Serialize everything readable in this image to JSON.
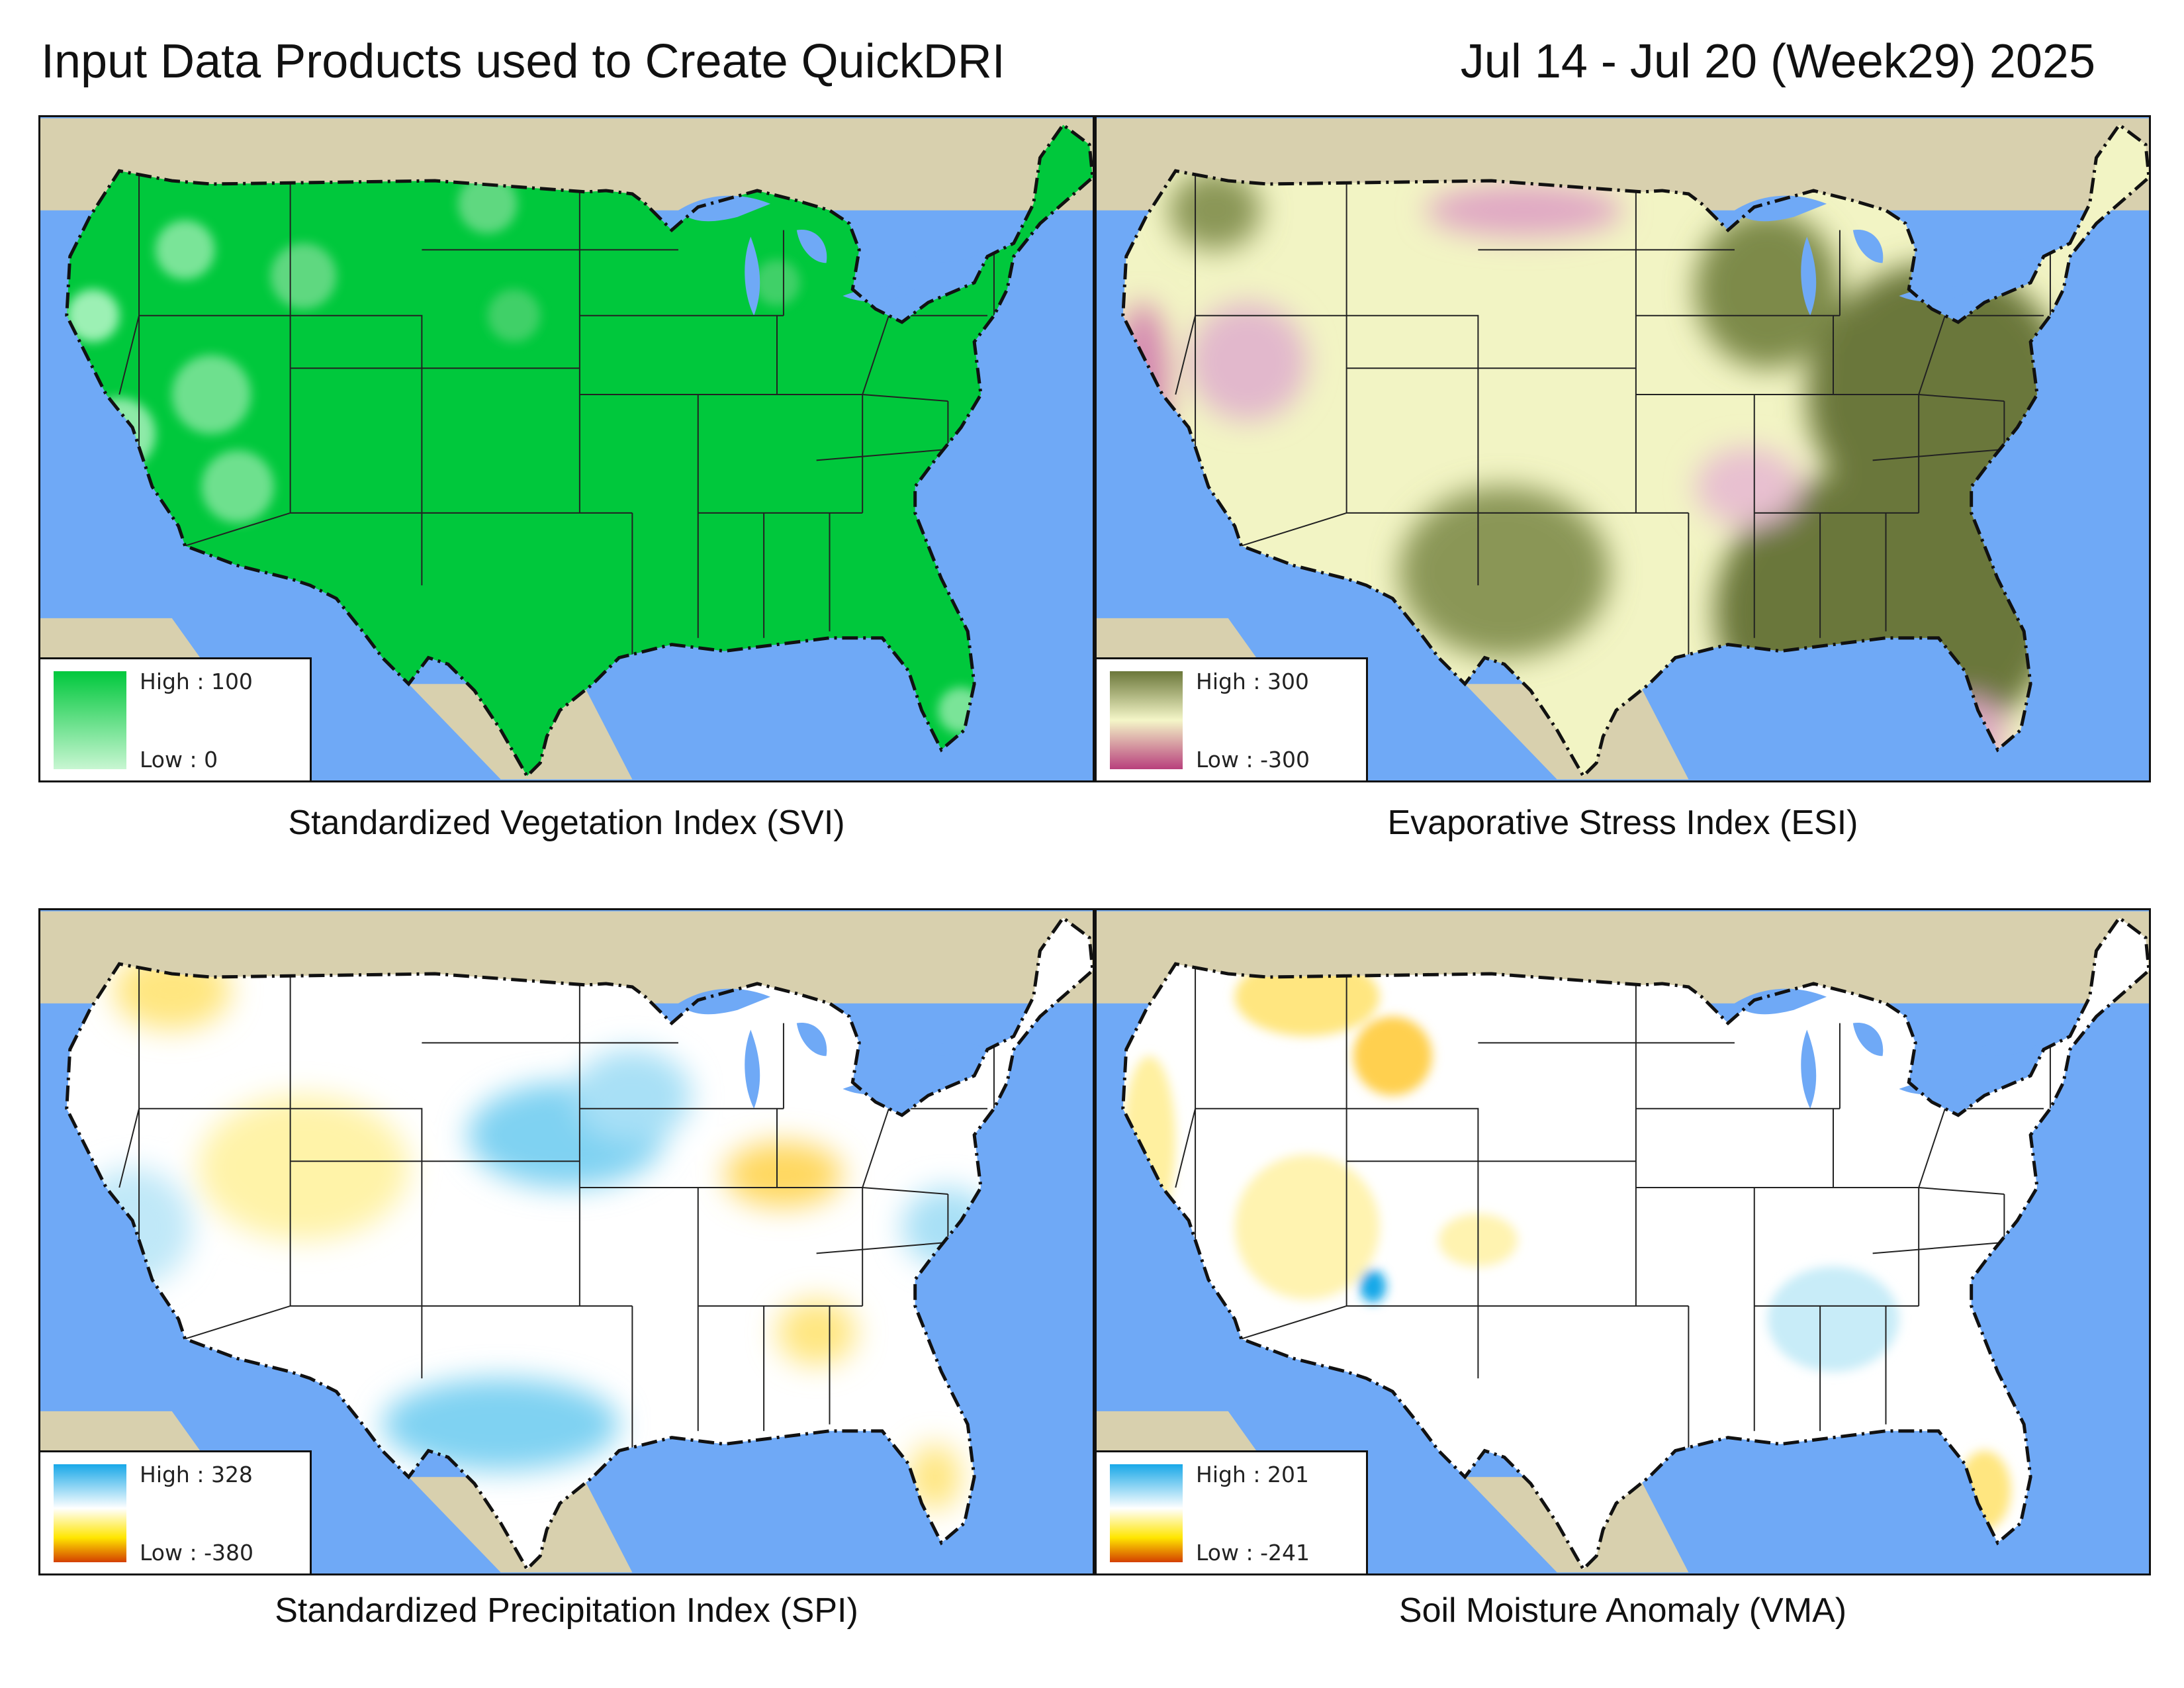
{
  "header": {
    "title": "Input Data Products used to Create QuickDRI",
    "date_range": "Jul 14 - Jul 20 (Week29) 2025"
  },
  "colors": {
    "ocean": "#6fa9f6",
    "land_other": "#d8d0ae",
    "svi_high": "#00c83c",
    "svi_low": "#c8f6d2",
    "esi_high": "#6b773a",
    "esi_mid": "#f4f6c8",
    "esi_low": "#b8407c",
    "spi_high": "#18a8e8",
    "spi_low": "#d44000",
    "vma_high": "#18a8e8",
    "vma_low": "#d44000"
  },
  "panels": [
    {
      "id": "svi",
      "caption": "Standardized Vegetation Index (SVI)",
      "legend": {
        "high": "High : 100",
        "low": "Low : 0"
      }
    },
    {
      "id": "esi",
      "caption": "Evaporative Stress Index (ESI)",
      "legend": {
        "high": "High : 300",
        "low": "Low : -300"
      }
    },
    {
      "id": "spi",
      "caption": "Standardized Precipitation Index (SPI)",
      "legend": {
        "high": "High : 328",
        "low": "Low : -380"
      }
    },
    {
      "id": "vma",
      "caption": "Soil Moisture Anomaly (VMA)",
      "legend": {
        "high": "High : 201",
        "low": "Low : -241"
      }
    }
  ]
}
